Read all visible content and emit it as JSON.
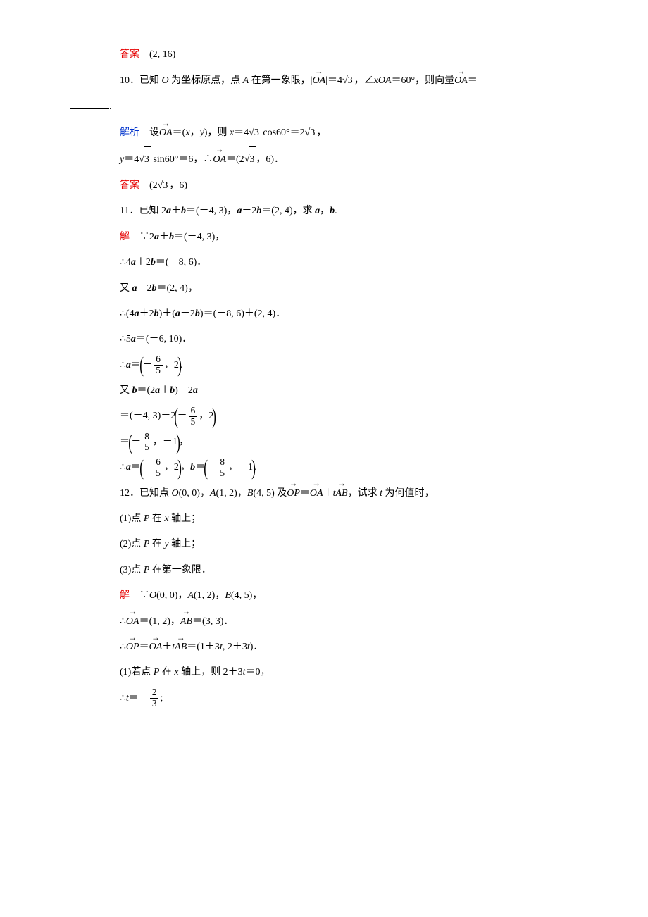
{
  "colors": {
    "red": "#e60000",
    "blue": "#0033cc",
    "black": "#000000",
    "bg": "#ffffff"
  },
  "font": {
    "family": "SimSun",
    "size_pt": 10.5,
    "line_height": 2.6
  },
  "lines": {
    "l1a": "答案",
    "l1b": "　(2, 16)",
    "l2a": "10．已知 ",
    "l2aa": "O",
    "l2b": " 为坐标原点，点 ",
    "l2c": "A",
    "l2d": " 在第一象限，|",
    "l2e": "OA",
    "l2f": "|＝4",
    "l2g": "3",
    "l2h": "，∠",
    "l2i": "xOA",
    "l2j": "＝60°，则向量",
    "l2k": "OA",
    "l2l": "＝",
    "l3": ".",
    "l4a": "解析",
    "l4b": "　设",
    "l4c": "OA",
    "l4d": "＝(",
    "l4e": "x",
    "l4f": "，",
    "l4g": "y",
    "l4h": ")，则 ",
    "l4i": "x",
    "l4j": "＝4",
    "l4k": "3",
    "l4l": " cos60°＝2",
    "l4m": "3",
    "l4n": "，",
    "l5a": "y",
    "l5b": "＝4",
    "l5c": "3",
    "l5d": " sin60°＝6，∴",
    "l5e": "OA",
    "l5f": "＝(2",
    "l5g": "3",
    "l5h": "，6)．",
    "l6a": "答案",
    "l6b": "　(2",
    "l6c": "3",
    "l6d": "，6)",
    "l7a": "11．已知 2",
    "l7b": "a",
    "l7c": "＋",
    "l7d": "b",
    "l7e": "＝(－4, 3)，",
    "l7f": "a",
    "l7g": "－2",
    "l7h": "b",
    "l7i": "＝(2, 4)，求 ",
    "l7j": "a",
    "l7k": "，",
    "l7l": "b",
    "l7m": ".",
    "l8a": "解",
    "l8b": "　∵2",
    "l8c": "a",
    "l8d": "＋",
    "l8e": "b",
    "l8f": "＝(－4, 3)，",
    "l9a": "∴4",
    "l9b": "a",
    "l9c": "＋2",
    "l9d": "b",
    "l9e": "＝(－8, 6)．",
    "l10a": "又 ",
    "l10b": "a",
    "l10c": "－2",
    "l10d": "b",
    "l10e": "＝(2, 4)，",
    "l11a": "∴(4",
    "l11b": "a",
    "l11c": "＋2",
    "l11d": "b",
    "l11e": ")＋(",
    "l11f": "a",
    "l11g": "－2",
    "l11h": "b",
    "l11i": ")＝(－8, 6)＋(2, 4)．",
    "l12a": "∴5",
    "l12b": "a",
    "l12c": "＝(－6, 10)．",
    "l13a": "∴",
    "l13b": "a",
    "l13c": "＝",
    "l13d": "－",
    "l13e": "6",
    "l13f": "5",
    "l13g": "，2",
    "l13h": ".",
    "l14a": "又 ",
    "l14b": "b",
    "l14c": "＝(2",
    "l14d": "a",
    "l14e": "＋",
    "l14f": "b",
    "l14g": ")－2",
    "l14h": "a",
    "l15a": "＝(－4, 3)－2",
    "l15b": "－",
    "l15c": "6",
    "l15d": "5",
    "l15e": "，2",
    "l16a": "＝",
    "l16b": "－",
    "l16c": "8",
    "l16d": "5",
    "l16e": "，－1",
    "l16f": "，",
    "l17a": "∴",
    "l17b": "a",
    "l17c": "＝",
    "l17d": "－",
    "l17e": "6",
    "l17f": "5",
    "l17g": "，2",
    "l17h": "，",
    "l17i": "b",
    "l17j": "＝",
    "l17k": "－",
    "l17l": "8",
    "l17m": "5",
    "l17n": "，－1",
    "l17o": ".",
    "l18a": "12．已知点 ",
    "l18b": "O",
    "l18c": "(0, 0)，",
    "l18d": "A",
    "l18e": "(1, 2)，",
    "l18f": "B",
    "l18g": "(4, 5) 及",
    "l18h": "OP",
    "l18i": "＝",
    "l18j": "OA",
    "l18k": "＋",
    "l18l": "t",
    "l18m": "AB",
    "l18n": "，试求 ",
    "l18o": "t",
    "l18p": " 为何值时，",
    "l19a": "(1)点 ",
    "l19b": "P",
    "l19c": " 在 ",
    "l19d": "x",
    "l19e": " 轴上；",
    "l20a": "(2)点 ",
    "l20b": "P",
    "l20c": " 在 ",
    "l20d": "y",
    "l20e": " 轴上；",
    "l21a": "(3)点 ",
    "l21b": "P",
    "l21c": " 在第一象限．",
    "l22a": "解",
    "l22b": "　∵",
    "l22c": "O",
    "l22d": "(0, 0)，",
    "l22e": "A",
    "l22f": "(1, 2)，",
    "l22g": "B",
    "l22h": "(4, 5)，",
    "l23a": "∴",
    "l23b": "OA",
    "l23c": "＝(1, 2)，",
    "l23d": "AB",
    "l23e": "＝(3, 3)．",
    "l24a": "∴",
    "l24b": "OP",
    "l24c": "＝",
    "l24d": "OA",
    "l24e": "＋",
    "l24f": "t",
    "l24g": "AB",
    "l24h": "＝(1＋3",
    "l24i": "t",
    "l24j": ", 2＋3",
    "l24k": "t",
    "l24l": ")．",
    "l25a": "(1)若点 ",
    "l25b": "P",
    "l25c": " 在 ",
    "l25d": "x",
    "l25e": " 轴上，则 2＋3",
    "l25f": "t",
    "l25g": "＝0，",
    "l26a": "∴",
    "l26b": "t",
    "l26c": "＝－",
    "l26d": "2",
    "l26e": "3",
    "l26f": ";"
  }
}
